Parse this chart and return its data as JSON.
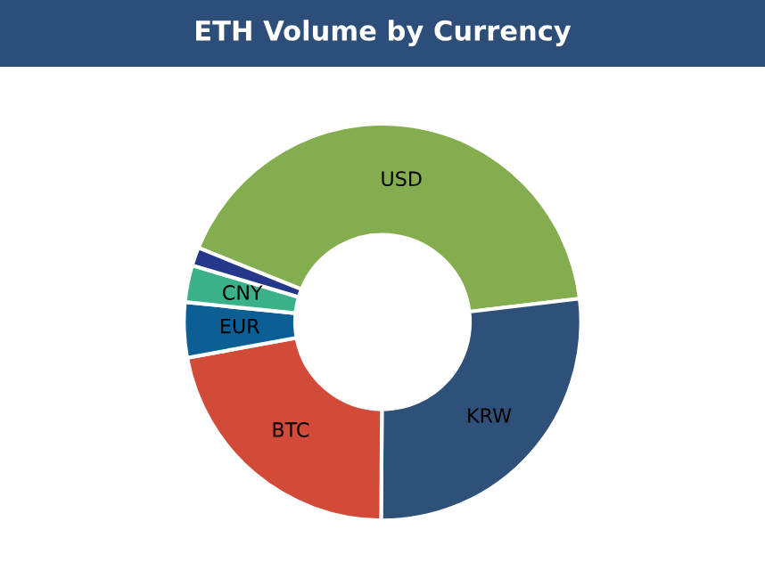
{
  "chart_data": {
    "type": "donut",
    "title": "ETH Volume by Currency",
    "categories": [
      "USD",
      "KRW",
      "BTC",
      "EUR",
      "CNY",
      null
    ],
    "values": [
      42,
      27,
      22,
      4.5,
      3,
      1.5
    ],
    "colors": [
      "#84ad50",
      "#2e5079",
      "#d24a38",
      "#0b5f95",
      "#3bb18a",
      "#23388a"
    ]
  }
}
